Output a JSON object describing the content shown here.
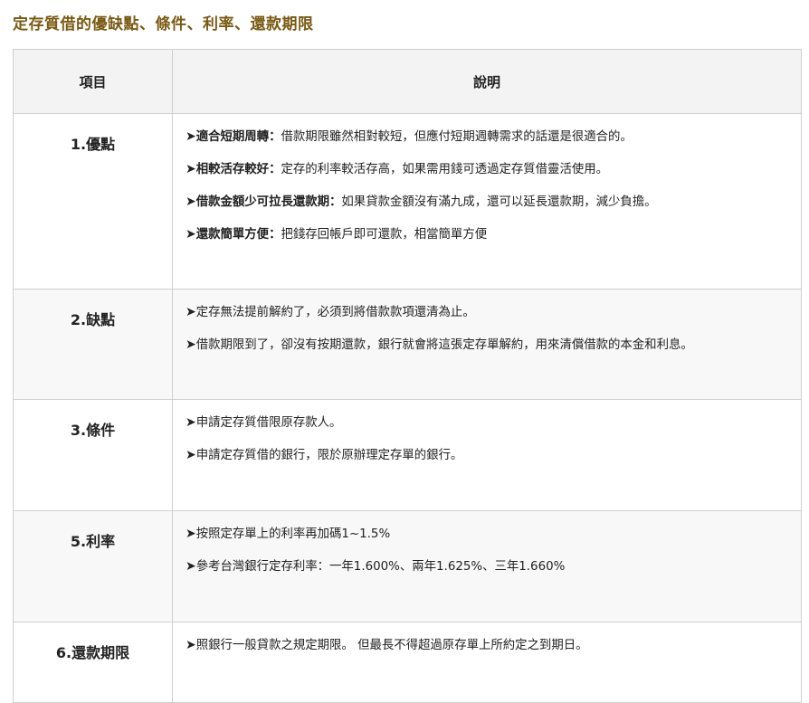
{
  "title": "定存質借的優缺點、條件、利率、還款期限",
  "header": {
    "item": "項目",
    "desc": "說明"
  },
  "arrow": "➤",
  "rows": [
    {
      "item": "1.優點",
      "lines": [
        {
          "kw": "適合短期周轉：",
          "text": "借款期限雖然相對較短，但應付短期週轉需求的話還是很適合的。"
        },
        {
          "kw": "相較活存較好：",
          "text": "定存的利率較活存高，如果需用錢可透過定存質借靈活使用。"
        },
        {
          "kw": "借款金額少可拉長還款期：",
          "text": "如果貸款金額沒有滿九成，還可以延長還款期，減少負擔。"
        },
        {
          "kw": "還款簡單方便：",
          "text": "把錢存回帳戶即可還款，相當簡單方便"
        }
      ]
    },
    {
      "item": "2.缺點",
      "lines": [
        {
          "kw": "",
          "text": "定存無法提前解約了，必須到將借款款項還清為止。"
        },
        {
          "kw": "",
          "text": "借款期限到了，卻沒有按期還款，銀行就會將這張定存單解約，用來清償借款的本金和利息。"
        }
      ]
    },
    {
      "item": "3.條件",
      "lines": [
        {
          "kw": "",
          "text": "申請定存質借限原存款人。"
        },
        {
          "kw": "",
          "text": "申請定存質借的銀行，限於原辦理定存單的銀行。"
        }
      ]
    },
    {
      "item": "5.利率",
      "lines": [
        {
          "kw": "",
          "text": "按照定存單上的利率再加碼1~1.5%"
        },
        {
          "kw": "",
          "text": "參考台灣銀行定存利率：一年1.600%、兩年1.625%、三年1.660%"
        }
      ]
    },
    {
      "item": "6.還款期限",
      "lines": [
        {
          "kw": "",
          "text": "照銀行一般貸款之規定期限。 但最長不得超過原存單上所約定之到期日。"
        }
      ]
    }
  ]
}
